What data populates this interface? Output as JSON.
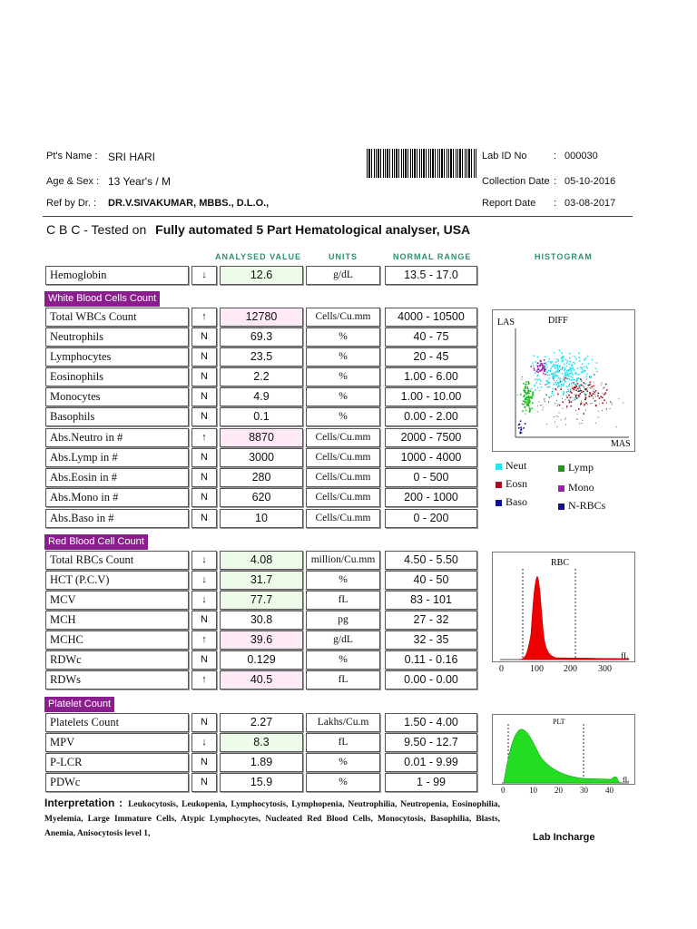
{
  "patient": {
    "name_label": "Pt's Name :",
    "name": "SRI HARI",
    "age_label": "Age & Sex :",
    "age_sex": "13 Year's / M",
    "ref_label": "Ref by Dr. :",
    "ref": "DR.V.SIVAKUMAR, MBBS., D.L.O.,",
    "lab_id_label": "Lab ID No",
    "lab_id": "000030",
    "collection_label": "Collection Date",
    "collection": "05-10-2016",
    "report_label": "Report Date",
    "report": "03-08-2017"
  },
  "test": {
    "prefix": "C B C - Tested on",
    "method": "Fully automated 5 Part Hematological analyser, USA"
  },
  "columns": {
    "value": "ANALYSED VALUE",
    "units": "UNITS",
    "range": "NORMAL RANGE",
    "histogram": "HISTOGRAM"
  },
  "sections": {
    "wbc": "White Blood Cells Count",
    "rbc": "Red Blood Cell Count",
    "plt": "Platelet Count"
  },
  "rows": [
    {
      "name": "Hemoglobin",
      "flag": "↓",
      "value": "12.6",
      "unit": "g/dL",
      "range": "13.5 - 17.0",
      "status": "low"
    },
    {
      "name": "Total WBCs Count",
      "flag": "↑",
      "value": "12780",
      "unit": "Cells/Cu.mm",
      "range": "4000 - 10500",
      "status": "high"
    },
    {
      "name": "Neutrophils",
      "flag": "N",
      "value": "69.3",
      "unit": "%",
      "range": "40 - 75",
      "status": "normal"
    },
    {
      "name": "Lymphocytes",
      "flag": "N",
      "value": "23.5",
      "unit": "%",
      "range": "20 - 45",
      "status": "normal"
    },
    {
      "name": "Eosinophils",
      "flag": "N",
      "value": "2.2",
      "unit": "%",
      "range": "1.00 - 6.00",
      "status": "normal"
    },
    {
      "name": "Monocytes",
      "flag": "N",
      "value": "4.9",
      "unit": "%",
      "range": "1.00 - 10.00",
      "status": "normal"
    },
    {
      "name": "Basophils",
      "flag": "N",
      "value": "0.1",
      "unit": "%",
      "range": "0.00 - 2.00",
      "status": "normal"
    },
    {
      "name": "Abs.Neutro in #",
      "flag": "↑",
      "value": "8870",
      "unit": "Cells/Cu.mm",
      "range": "2000 - 7500",
      "status": "high"
    },
    {
      "name": "Abs.Lymp in #",
      "flag": "N",
      "value": "3000",
      "unit": "Cells/Cu.mm",
      "range": "1000 - 4000",
      "status": "normal"
    },
    {
      "name": "Abs.Eosin in #",
      "flag": "N",
      "value": "280",
      "unit": "Cells/Cu.mm",
      "range": "0 - 500",
      "status": "normal"
    },
    {
      "name": "Abs.Mono in #",
      "flag": "N",
      "value": "620",
      "unit": "Cells/Cu.mm",
      "range": "200 - 1000",
      "status": "normal"
    },
    {
      "name": "Abs.Baso in #",
      "flag": "N",
      "value": "10",
      "unit": "Cells/Cu.mm",
      "range": "0 - 200",
      "status": "normal"
    },
    {
      "name": "Total RBCs Count",
      "flag": "↓",
      "value": "4.08",
      "unit": "million/Cu.mm",
      "range": "4.50 - 5.50",
      "status": "low"
    },
    {
      "name": "HCT (P.C.V)",
      "flag": "↓",
      "value": "31.7",
      "unit": "%",
      "range": "40 - 50",
      "status": "low"
    },
    {
      "name": "MCV",
      "flag": "↓",
      "value": "77.7",
      "unit": "fL",
      "range": "83 - 101",
      "status": "low"
    },
    {
      "name": "MCH",
      "flag": "N",
      "value": "30.8",
      "unit": "pg",
      "range": "27 - 32",
      "status": "normal"
    },
    {
      "name": "MCHC",
      "flag": "↑",
      "value": "39.6",
      "unit": "g/dL",
      "range": "32 - 35",
      "status": "high"
    },
    {
      "name": "RDWc",
      "flag": "N",
      "value": "0.129",
      "unit": "%",
      "range": "0.11 - 0.16",
      "status": "normal"
    },
    {
      "name": "RDWs",
      "flag": "↑",
      "value": "40.5",
      "unit": "fL",
      "range": "0.00 - 0.00",
      "status": "high"
    },
    {
      "name": "Platelets Count",
      "flag": "N",
      "value": "2.27",
      "unit": "Lakhs/Cu.m",
      "range": "1.50 - 4.00",
      "status": "normal"
    },
    {
      "name": "MPV",
      "flag": "↓",
      "value": "8.3",
      "unit": "fL",
      "range": "9.50 - 12.7",
      "status": "low"
    },
    {
      "name": "P-LCR",
      "flag": "N",
      "value": "1.89",
      "unit": "%",
      "range": "0.01 - 9.99",
      "status": "normal"
    },
    {
      "name": "PDWc",
      "flag": "N",
      "value": "15.9",
      "unit": "%",
      "range": "1 - 99",
      "status": "normal"
    }
  ],
  "histograms": {
    "diff": {
      "title": "DIFF",
      "ylabel": "LAS",
      "xlabel": "MAS"
    },
    "rbc": {
      "title": "RBC",
      "unit": "fL",
      "ticks": [
        "0",
        "100",
        "200",
        "300"
      ]
    },
    "plt": {
      "title": "PLT",
      "unit": "fL",
      "ticks": [
        "0",
        "10",
        "20",
        "30",
        "40"
      ]
    }
  },
  "legend": [
    {
      "label": "Neut",
      "color": "#22e6f0"
    },
    {
      "label": "Lymp",
      "color": "#1a9a1a"
    },
    {
      "label": "Eosn",
      "color": "#a01020"
    },
    {
      "label": "Mono",
      "color": "#9b1fa8"
    },
    {
      "label": "Baso",
      "color": "#101090"
    },
    {
      "label": "N-RBCs",
      "color": "#101090"
    }
  ],
  "interpretation": {
    "label": "Interpretation :",
    "text": "Leukocytosis, Leukopenia, Lymphocytosis, Lymphopenia, Neutrophilia, Neutropenia, Eosinophilia, Myelemia, Large Immature Cells, Atypic Lymphocytes, Nucleated Red Blood Cells, Monocytosis, Basophilia, Blasts, Anemia, Anisocytosis level 1,"
  },
  "signature": "Lab Incharge",
  "colors": {
    "section_bg": "#8b1e8f",
    "header_green": "#2f8f6e",
    "low_bg": "#eefbe9",
    "high_bg": "#fdeaf6"
  }
}
